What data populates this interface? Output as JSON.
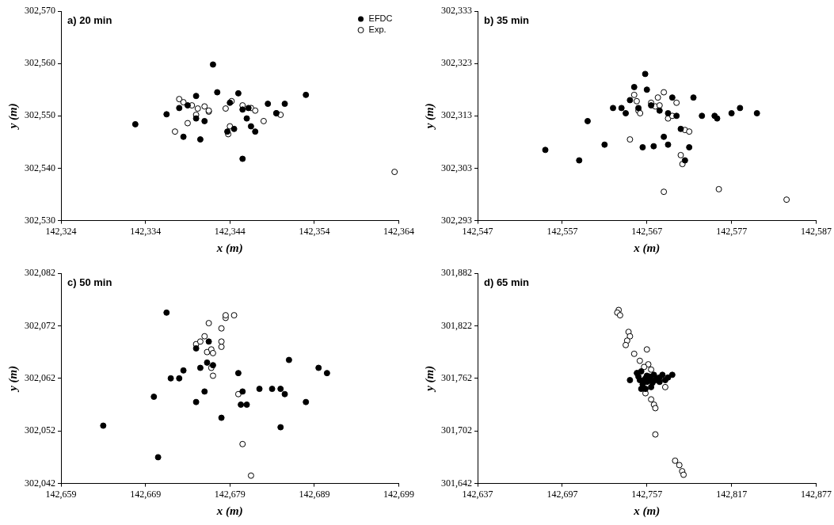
{
  "chart_data": [
    {
      "type": "scatter",
      "title": "a) 20 min",
      "x_label": "x (m)",
      "y_label": "y (m)",
      "grid": false,
      "legend": "upper right",
      "xlim": [
        142324,
        142364
      ],
      "xticks": [
        {
          "value": 142324,
          "label": "142,324"
        },
        {
          "value": 142334,
          "label": "142,334"
        },
        {
          "value": 142344,
          "label": "142,344"
        },
        {
          "value": 142354,
          "label": "142,354"
        },
        {
          "value": 142364,
          "label": "142,364"
        }
      ],
      "ylim": [
        302530,
        302570
      ],
      "yticks": [
        {
          "value": 302530,
          "label": "302,530"
        },
        {
          "value": 302540,
          "label": "302,540"
        },
        {
          "value": 302550,
          "label": "302,550"
        },
        {
          "value": 302560,
          "label": "302,560"
        },
        {
          "value": 302570,
          "label": "302,570"
        }
      ],
      "series": [
        {
          "name": "EFDC",
          "color": "#000000",
          "marker": "filled_circle",
          "x": [
            142332.8,
            142336.5,
            142338,
            142339,
            142340,
            142341,
            142338.5,
            142340.5,
            142342,
            142342.5,
            142344,
            142344.5,
            142343.7,
            142345,
            142345.5,
            142346,
            142346.5,
            142347,
            142345.5,
            142348.5,
            142349.5,
            142350.5,
            142353,
            142346.2,
            142340
          ],
          "values": [
            302548.4,
            302550.3,
            302551.5,
            302552,
            302553.8,
            302549,
            302546,
            302545.5,
            302559.8,
            302554.5,
            302552.5,
            302547.5,
            302547,
            302554.3,
            302551.2,
            302549.5,
            302548,
            302547,
            302541.8,
            302552.3,
            302550.5,
            302552.3,
            302554,
            302551.5,
            302549.5
          ]
        },
        {
          "name": "Exp.",
          "color": "#000000",
          "marker": "open_circle",
          "x": [
            142338,
            142338.5,
            142339.5,
            142340.2,
            142341,
            142341.5,
            142340,
            142339,
            142337.5,
            142341.5,
            142343.5,
            142344.2,
            142343.8,
            142346.5,
            142347,
            142348,
            142349.5,
            142350,
            142363.5,
            142345.5,
            142344
          ],
          "values": [
            302553.2,
            302552.6,
            302552,
            302551.4,
            302551.8,
            302550.8,
            302550.2,
            302548.6,
            302547,
            302551,
            302551.4,
            302552.8,
            302546.5,
            302551.5,
            302551,
            302549,
            302550.5,
            302550.2,
            302539.3,
            302552,
            302548
          ]
        }
      ]
    },
    {
      "type": "scatter",
      "title": "b) 35 min",
      "x_label": "x (m)",
      "y_label": "y (m)",
      "grid": false,
      "xlim": [
        142547,
        142587
      ],
      "xticks": [
        {
          "value": 142547,
          "label": "142,547"
        },
        {
          "value": 142557,
          "label": "142,557"
        },
        {
          "value": 142567,
          "label": "142,567"
        },
        {
          "value": 142577,
          "label": "142,577"
        },
        {
          "value": 142587,
          "label": "142,587"
        }
      ],
      "ylim": [
        302293,
        302333
      ],
      "yticks": [
        {
          "value": 302293,
          "label": "302,293"
        },
        {
          "value": 302303,
          "label": "302,303"
        },
        {
          "value": 302313,
          "label": "302,313"
        },
        {
          "value": 302323,
          "label": "302,323"
        },
        {
          "value": 302333,
          "label": "302,333"
        }
      ],
      "series": [
        {
          "color": "#000000",
          "marker": "filled_circle",
          "x": [
            142555,
            142559,
            142560,
            142562,
            142563,
            142564,
            142564.5,
            142565,
            142565.5,
            142566,
            142566.5,
            142566.8,
            142567,
            142567.5,
            142567.8,
            142568.5,
            142569,
            142569.5,
            142569.5,
            142570,
            142570.5,
            142571,
            142571.5,
            142572,
            142572.5,
            142573.5,
            142575,
            142575.3,
            142577,
            142578,
            142580
          ],
          "values": [
            302306.5,
            302304.5,
            302312,
            302307.5,
            302314.5,
            302314.5,
            302313.5,
            302316,
            302318.5,
            302314.5,
            302307,
            302321,
            302318,
            302315,
            302307.2,
            302314,
            302309,
            302313.5,
            302307.5,
            302316.5,
            302313,
            302310.5,
            302304.5,
            302307,
            302316.5,
            302313,
            302313,
            302312.5,
            302313.5,
            302314.5,
            302313.5
          ]
        },
        {
          "color": "#000000",
          "marker": "open_circle",
          "x": [
            142565.5,
            142565.8,
            142566,
            142566.2,
            142565,
            142567.5,
            142568,
            142568.3,
            142568.5,
            142569,
            142569.5,
            142570,
            142570.5,
            142571,
            142571.2,
            142571.5,
            142572,
            142569,
            142575.5,
            142583.5
          ],
          "values": [
            302317,
            302315.8,
            302314,
            302313.5,
            302308.5,
            302315.5,
            302314.8,
            302316.5,
            302315,
            302317.5,
            302312.5,
            302313,
            302315.5,
            302305.5,
            302303.8,
            302310.3,
            302310,
            302298.5,
            302299,
            302297
          ]
        }
      ]
    },
    {
      "type": "scatter",
      "title": "c) 50 min",
      "x_label": "x (m)",
      "y_label": "y (m)",
      "grid": false,
      "xlim": [
        142659,
        142699
      ],
      "xticks": [
        {
          "value": 142659,
          "label": "142,659"
        },
        {
          "value": 142669,
          "label": "142,669"
        },
        {
          "value": 142679,
          "label": "142,679"
        },
        {
          "value": 142689,
          "label": "142,689"
        },
        {
          "value": 142699,
          "label": "142,699"
        }
      ],
      "ylim": [
        302042,
        302082
      ],
      "yticks": [
        {
          "value": 302042,
          "label": "302,042"
        },
        {
          "value": 302052,
          "label": "302,052"
        },
        {
          "value": 302062,
          "label": "302,062"
        },
        {
          "value": 302072,
          "label": "302,072"
        },
        {
          "value": 302082,
          "label": "302,082"
        }
      ],
      "series": [
        {
          "color": "#000000",
          "marker": "filled_circle",
          "x": [
            142664,
            142670,
            142670.5,
            142671.5,
            142672,
            142673,
            142673.5,
            142675,
            142675,
            142675.5,
            142676,
            142676.3,
            142676.5,
            142677,
            142678,
            142680,
            142680.5,
            142680.3,
            142681,
            142682.5,
            142684,
            142685,
            142685,
            142685.5,
            142686,
            142688,
            142689.5,
            142690.5
          ],
          "values": [
            302053,
            302058.5,
            302047,
            302074.5,
            302062,
            302062,
            302063.5,
            302057.5,
            302067.7,
            302064,
            302059.5,
            302065,
            302069,
            302064.5,
            302054.5,
            302063,
            302059.5,
            302057,
            302057,
            302060,
            302060,
            302060,
            302052.7,
            302059,
            302065.5,
            302057.5,
            302064,
            302063
          ]
        },
        {
          "color": "#000000",
          "marker": "open_circle",
          "x": [
            142675,
            142675.5,
            142676,
            142676.5,
            142676.3,
            142676.8,
            142677,
            142676.8,
            142677,
            142678,
            142678,
            142678,
            142678.5,
            142678.5,
            142679.5,
            142680,
            142680.5,
            142681.5
          ],
          "values": [
            302068.5,
            302069,
            302070,
            302072.5,
            302067,
            302067.5,
            302066.8,
            302064,
            302062.5,
            302071.5,
            302068,
            302069,
            302073.5,
            302074,
            302074,
            302059,
            302049.5,
            302043.5
          ]
        }
      ]
    },
    {
      "type": "scatter",
      "title": "d) 65 min",
      "x_label": "x (m)",
      "y_label": "y (m)",
      "grid": false,
      "xlim": [
        142637,
        142877
      ],
      "xticks": [
        {
          "value": 142637,
          "label": "142,637"
        },
        {
          "value": 142697,
          "label": "142,697"
        },
        {
          "value": 142757,
          "label": "142,757"
        },
        {
          "value": 142817,
          "label": "142,817"
        },
        {
          "value": 142877,
          "label": "142,877"
        }
      ],
      "ylim": [
        301642,
        301882
      ],
      "yticks": [
        {
          "value": 301642,
          "label": "301,642"
        },
        {
          "value": 301702,
          "label": "301,702"
        },
        {
          "value": 301762,
          "label": "301,762"
        },
        {
          "value": 301822,
          "label": "301,822"
        },
        {
          "value": 301882,
          "label": "301,882"
        }
      ],
      "series": [
        {
          "color": "#000000",
          "marker": "filled_circle",
          "x": [
            142745,
            142750,
            142751,
            142752,
            142753,
            142754,
            142755,
            142756,
            142757,
            142757,
            142758,
            142759,
            142760,
            142761,
            142762,
            142763,
            142764,
            142766,
            142768,
            142770,
            142772,
            142775,
            142753,
            142756,
            142760,
            142766
          ],
          "values": [
            301760,
            301768,
            301764,
            301760,
            301770,
            301755,
            301760,
            301762,
            301765,
            301758,
            301762,
            301764,
            301760,
            301757,
            301766,
            301760,
            301762,
            301763,
            301766,
            301760,
            301763,
            301766,
            301750,
            301750,
            301752,
            301758
          ]
        },
        {
          "color": "#000000",
          "marker": "open_circle",
          "x": [
            142737,
            142736,
            142738,
            142744,
            142745,
            142743,
            142742,
            142748,
            142752,
            142757,
            142758,
            142760,
            142755,
            142750,
            142756,
            142760,
            142762,
            142763,
            142763,
            142777,
            142780,
            142782,
            142783,
            142758,
            142770
          ],
          "values": [
            301840,
            301837,
            301834,
            301815,
            301810,
            301805,
            301800,
            301790,
            301782,
            301795,
            301778,
            301772,
            301775,
            301768,
            301745,
            301738,
            301732,
            301728,
            301698,
            301668,
            301663,
            301656,
            301652,
            301760,
            301752
          ]
        }
      ]
    }
  ]
}
